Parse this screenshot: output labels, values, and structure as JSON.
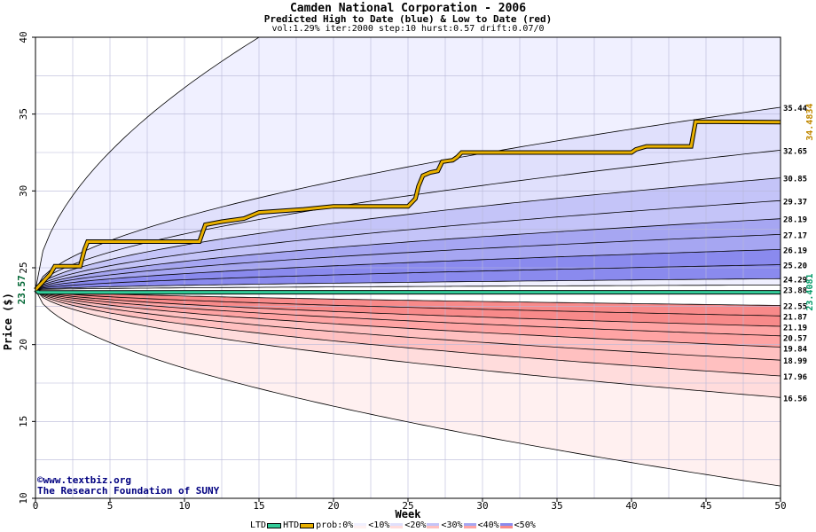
{
  "header": {
    "title": "Camden National Corporation - 2006",
    "subtitle": "Predicted High to Date (blue) &  Low to Date (red)",
    "params": "vol:1.29% iter:2000 step:10 hurst:0.57 drift:0.07/0"
  },
  "credit": {
    "line1": "©www.textbiz.org",
    "line2": "The Research Foundation of SUNY"
  },
  "legend": {
    "ltd": "LTD",
    "htd": "HTD",
    "prob": "prob:0%",
    "items": [
      "<10%",
      "<20%",
      "<30%",
      "<40%",
      "<50%"
    ]
  },
  "colors": {
    "htd_line": "#e8b000",
    "ltd_line": "#33cc99",
    "blue_bands": [
      "#f0f0ff",
      "#e0e0fc",
      "#c4c4f8",
      "#a6a6f2",
      "#8a8aee"
    ],
    "red_bands": [
      "#fff0f0",
      "#ffdcdc",
      "#ffc0c0",
      "#ffa4a4",
      "#f88a8a"
    ]
  },
  "chart_data": {
    "type": "area",
    "xlabel": "Week",
    "ylabel": "Price ($)",
    "xlim": [
      0,
      50
    ],
    "ylim": [
      10,
      40
    ],
    "x_ticks": [
      0,
      5,
      10,
      15,
      20,
      25,
      30,
      35,
      40,
      45,
      50
    ],
    "y_ticks": [
      10,
      15,
      20,
      25,
      30,
      35,
      40
    ],
    "start_price": 23.57,
    "start_label": "23.57",
    "upper_quantiles_at_week_50": [
      35.44,
      32.65,
      30.85,
      29.37,
      28.19,
      27.17,
      26.19,
      25.2,
      24.29,
      23.88
    ],
    "lower_quantiles_at_week_50": [
      22.55,
      21.87,
      21.19,
      20.57,
      19.84,
      18.99,
      17.96,
      16.56,
      10.8
    ],
    "right_labels": [
      "35.44",
      "32.65",
      "30.85",
      "29.37",
      "28.19",
      "27.17",
      "26.19",
      "25.20",
      "24.29",
      "23.88",
      "22.55",
      "21.87",
      "21.19",
      "20.57",
      "19.84",
      "18.99",
      "17.96",
      "16.56"
    ],
    "max_upper_at_week_15": 40,
    "htd": {
      "name": "HTD",
      "final_label": "34.4834",
      "points": [
        [
          0,
          23.57
        ],
        [
          1,
          24.6
        ],
        [
          1.3,
          25.1
        ],
        [
          3,
          25.1
        ],
        [
          3.3,
          26.2
        ],
        [
          3.5,
          26.7
        ],
        [
          11,
          26.7
        ],
        [
          11.4,
          27.8
        ],
        [
          12.5,
          28
        ],
        [
          14,
          28.2
        ],
        [
          15,
          28.6
        ],
        [
          18,
          28.8
        ],
        [
          20,
          29
        ],
        [
          25,
          29
        ],
        [
          25.5,
          29.5
        ],
        [
          25.7,
          30.3
        ],
        [
          26,
          31
        ],
        [
          26.5,
          31.2
        ],
        [
          27,
          31.3
        ],
        [
          27.3,
          31.9
        ],
        [
          28,
          32
        ],
        [
          28.3,
          32.2
        ],
        [
          28.6,
          32.5
        ],
        [
          40,
          32.5
        ],
        [
          40.3,
          32.7
        ],
        [
          41,
          32.9
        ],
        [
          44,
          32.9
        ],
        [
          44.3,
          34.5
        ],
        [
          50,
          34.48
        ]
      ]
    },
    "ltd": {
      "name": "LTD",
      "final_label": "23.4081",
      "points": [
        [
          0,
          23.57
        ],
        [
          0.2,
          23.4
        ],
        [
          50,
          23.41
        ]
      ]
    }
  }
}
